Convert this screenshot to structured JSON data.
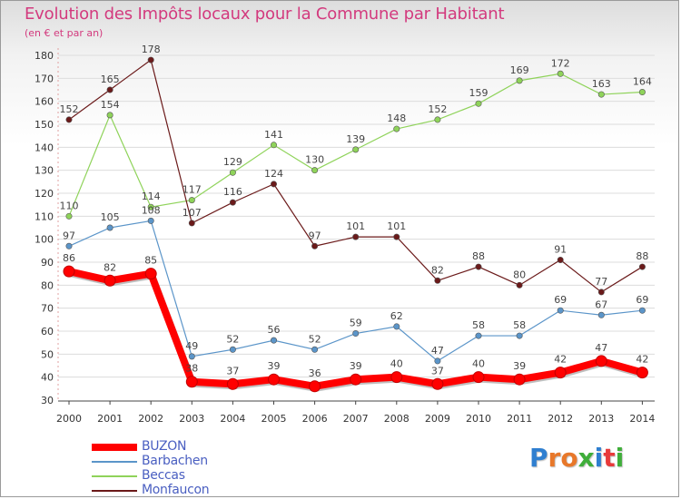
{
  "header": {
    "title": "Evolution des Impôts locaux pour la Commune par Habitant",
    "subtitle": "(en € et par an)"
  },
  "logo": {
    "text": "Proxiti",
    "letters": [
      "P",
      "r",
      "o",
      "x",
      "i",
      "t",
      "i"
    ],
    "colors": [
      "#2f7fd0",
      "#e8782a",
      "#e8782a",
      "#3fae3a",
      "#2f7fd0",
      "#e83a3a",
      "#3fae3a"
    ]
  },
  "chart_data": {
    "type": "line",
    "title": "Evolution des Impôts locaux pour la Commune par Habitant",
    "subtitle": "(en € et par an)",
    "categories": [
      "2000",
      "2001",
      "2002",
      "2003",
      "2004",
      "2005",
      "2006",
      "2007",
      "2008",
      "2009",
      "2010",
      "2011",
      "2012",
      "2013",
      "2014"
    ],
    "ylim": [
      30,
      180
    ],
    "yticks": [
      30,
      40,
      50,
      60,
      70,
      80,
      90,
      100,
      110,
      120,
      130,
      140,
      150,
      160,
      170,
      180
    ],
    "grid": "horizontal",
    "legend_position": "bottom-left",
    "series": [
      {
        "name": "BUZON",
        "color": "#ff0000",
        "thick": true,
        "values": [
          86,
          82,
          85,
          38,
          37,
          39,
          36,
          39,
          40,
          37,
          40,
          39,
          42,
          47,
          42
        ]
      },
      {
        "name": "Barbachen",
        "color": "#5b95c9",
        "thick": false,
        "values": [
          97,
          105,
          108,
          49,
          52,
          56,
          52,
          59,
          62,
          47,
          58,
          58,
          69,
          67,
          69
        ]
      },
      {
        "name": "Beccas",
        "color": "#8fd35a",
        "thick": false,
        "values": [
          110,
          154,
          114,
          117,
          129,
          141,
          130,
          139,
          148,
          152,
          159,
          169,
          172,
          163,
          164
        ]
      },
      {
        "name": "Monfaucon",
        "color": "#6b1a1a",
        "thick": false,
        "values": [
          152,
          165,
          178,
          107,
          116,
          124,
          97,
          101,
          101,
          82,
          88,
          80,
          91,
          77,
          88
        ]
      }
    ]
  }
}
